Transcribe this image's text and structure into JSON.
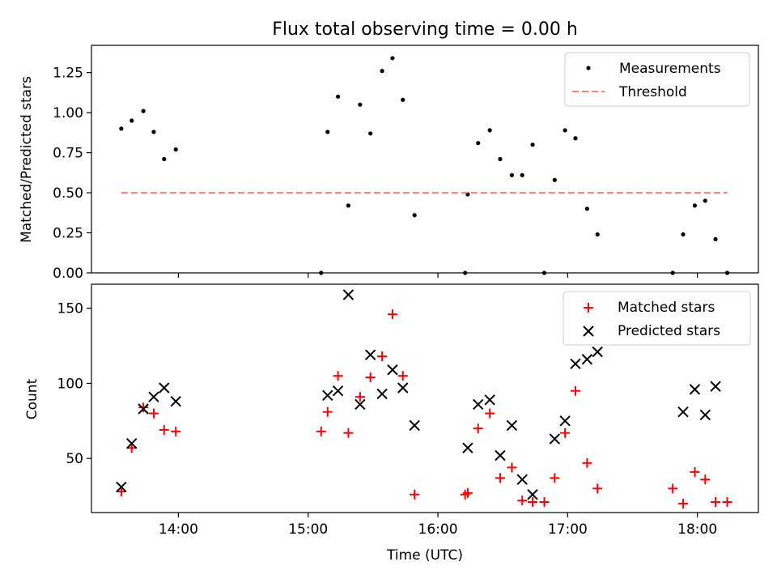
{
  "chart_data": [
    {
      "type": "scatter",
      "title": "Flux total observing time = 0.00 h",
      "ylabel": "Matched/Predicted stars",
      "xlabel": "",
      "xlim": [
        13.33,
        18.47
      ],
      "ylim": [
        0,
        1.42
      ],
      "xticks": [
        14,
        15,
        16,
        17,
        18
      ],
      "yticks": [
        0,
        0.25,
        0.5,
        0.75,
        1.0,
        1.25
      ],
      "ytick_labels": [
        "0.00",
        "0.25",
        "0.50",
        "0.75",
        "1.00",
        "1.25"
      ],
      "legend_position": "top-right",
      "series": [
        {
          "name": "Measurements",
          "style": "dot",
          "color": "#000000",
          "x": [
            13.56,
            13.64,
            13.73,
            13.81,
            13.89,
            13.98,
            15.1,
            15.15,
            15.23,
            15.31,
            15.4,
            15.48,
            15.57,
            15.65,
            15.73,
            15.82,
            16.21,
            16.23,
            16.31,
            16.4,
            16.48,
            16.57,
            16.65,
            16.73,
            16.82,
            16.9,
            16.98,
            17.06,
            17.15,
            17.23,
            17.81,
            17.89,
            17.98,
            18.06,
            18.14,
            18.23
          ],
          "y": [
            0.9,
            0.95,
            1.01,
            0.88,
            0.71,
            0.77,
            0.0,
            0.88,
            1.1,
            0.42,
            1.05,
            0.87,
            1.26,
            1.34,
            1.08,
            0.36,
            0.0,
            0.49,
            0.81,
            0.89,
            0.71,
            0.61,
            0.61,
            0.8,
            0.0,
            0.58,
            0.89,
            0.84,
            0.4,
            0.24,
            0.0,
            0.24,
            0.42,
            0.45,
            0.21,
            0.0
          ]
        },
        {
          "name": "Threshold",
          "style": "dashed-line",
          "color": "#ff7f7f",
          "x": [
            13.56,
            18.23
          ],
          "y": [
            0.5,
            0.5
          ]
        }
      ]
    },
    {
      "type": "scatter",
      "title": "",
      "ylabel": "Count",
      "xlabel": "Time (UTC)",
      "xlim": [
        13.33,
        18.47
      ],
      "ylim": [
        14,
        166
      ],
      "xticks": [
        14,
        15,
        16,
        17,
        18
      ],
      "xtick_labels": [
        "14:00",
        "15:00",
        "16:00",
        "17:00",
        "18:00"
      ],
      "yticks": [
        50,
        100,
        150
      ],
      "ytick_labels": [
        "50",
        "100",
        "150"
      ],
      "legend_position": "top-right",
      "series": [
        {
          "name": "Matched stars",
          "style": "plus",
          "color": "#ff0000",
          "x": [
            13.56,
            13.64,
            13.73,
            13.81,
            13.89,
            13.98,
            15.1,
            15.15,
            15.23,
            15.31,
            15.4,
            15.48,
            15.57,
            15.65,
            15.73,
            15.82,
            16.21,
            16.23,
            16.31,
            16.4,
            16.48,
            16.57,
            16.65,
            16.73,
            16.82,
            16.9,
            16.98,
            17.06,
            17.15,
            17.23,
            17.81,
            17.89,
            17.98,
            18.06,
            18.14,
            18.23
          ],
          "y": [
            28,
            57,
            84,
            80,
            69,
            68,
            68,
            81,
            105,
            67,
            91,
            104,
            118,
            146,
            105,
            26,
            26,
            27,
            70,
            80,
            37,
            44,
            22,
            21,
            21,
            37,
            67,
            95,
            47,
            30,
            30,
            20,
            41,
            36,
            21,
            21
          ]
        },
        {
          "name": "Predicted stars",
          "style": "x",
          "color": "#000000",
          "x": [
            13.56,
            13.64,
            13.73,
            13.81,
            13.89,
            13.98,
            15.15,
            15.23,
            15.31,
            15.4,
            15.48,
            15.57,
            15.65,
            15.73,
            15.82,
            16.23,
            16.31,
            16.4,
            16.48,
            16.57,
            16.65,
            16.73,
            16.9,
            16.98,
            17.06,
            17.15,
            17.23,
            17.89,
            17.98,
            18.06,
            18.14
          ],
          "y": [
            31,
            60,
            83,
            91,
            97,
            88,
            92,
            95,
            159,
            86,
            119,
            93,
            109,
            97,
            72,
            57,
            86,
            89,
            52,
            72,
            36,
            26,
            63,
            75,
            113,
            116,
            121,
            81,
            96,
            79,
            98
          ]
        }
      ]
    }
  ]
}
